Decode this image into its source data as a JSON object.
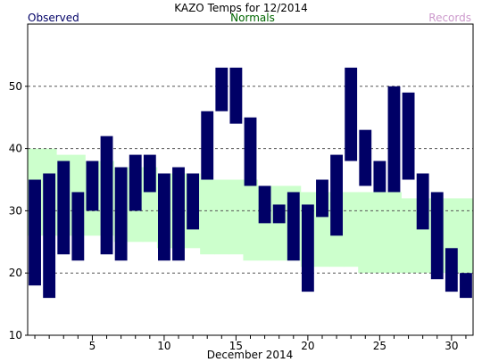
{
  "chart_data": {
    "type": "bar",
    "title": "KAZO Temps for  12/2014",
    "legend": {
      "observed": "Observed",
      "normals": "Normals",
      "records": "Records"
    },
    "xlabel": "December 2014",
    "ylabel": "",
    "xlim": [
      0.5,
      31.5
    ],
    "ylim": [
      10,
      60
    ],
    "x_ticks": [
      5,
      10,
      15,
      20,
      25,
      30
    ],
    "y_ticks": [
      10,
      20,
      30,
      40,
      50
    ],
    "grid": "horizontal dashed",
    "colors": {
      "observed": "#000066",
      "normals": "#ccffcc",
      "normals_label": "#006600",
      "records_label": "#cc99cc",
      "grid": "#555555"
    },
    "days": [
      1,
      2,
      3,
      4,
      5,
      6,
      7,
      8,
      9,
      10,
      11,
      12,
      13,
      14,
      15,
      16,
      17,
      18,
      19,
      20,
      21,
      22,
      23,
      24,
      25,
      26,
      27,
      28,
      29,
      30,
      31
    ],
    "series": [
      {
        "name": "Observed",
        "high": [
          35,
          36,
          38,
          33,
          38,
          42,
          37,
          39,
          39,
          36,
          37,
          36,
          46,
          53,
          53,
          45,
          34,
          31,
          33,
          31,
          35,
          39,
          53,
          43,
          38,
          50,
          49,
          36,
          33,
          24,
          20
        ],
        "low": [
          18,
          16,
          23,
          22,
          30,
          23,
          22,
          30,
          33,
          22,
          22,
          27,
          35,
          46,
          44,
          34,
          28,
          28,
          22,
          17,
          29,
          26,
          38,
          34,
          33,
          33,
          35,
          27,
          19,
          17,
          16
        ]
      },
      {
        "name": "Normals",
        "high": [
          40,
          40,
          39,
          39,
          38,
          38,
          37,
          37,
          37,
          36,
          36,
          36,
          35,
          35,
          35,
          35,
          34,
          34,
          34,
          33,
          33,
          33,
          33,
          33,
          33,
          33,
          32,
          32,
          32,
          32,
          32
        ],
        "low": [
          26,
          26,
          26,
          26,
          26,
          26,
          25,
          25,
          25,
          24,
          24,
          24,
          23,
          23,
          23,
          22,
          22,
          22,
          22,
          21,
          21,
          21,
          21,
          20,
          20,
          20,
          20,
          20,
          20,
          20,
          20
        ]
      }
    ]
  }
}
